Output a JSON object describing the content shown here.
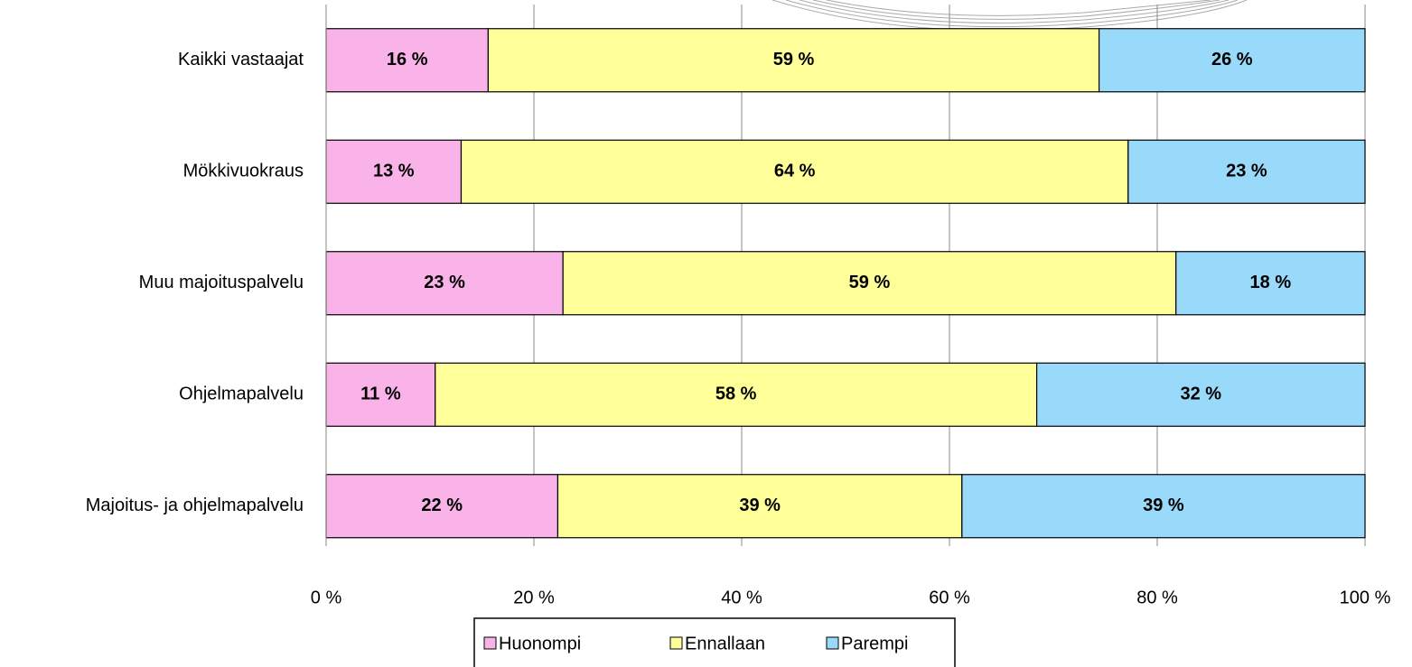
{
  "chart_data": {
    "type": "stacked-barh",
    "categories": [
      "Kaikki vastaajat",
      "Mökkivuokraus",
      "Muu majoituspalvelu",
      "Ohjelmapalvelu",
      "Majoitus- ja ohjelmapalvelu"
    ],
    "series": [
      {
        "name": "Huonompi",
        "color": "#f9b3e8",
        "values": [
          15.6,
          13.0,
          22.8,
          10.5,
          22.3
        ],
        "value_labels": [
          "16 %",
          "13 %",
          "23 %",
          "11 %",
          "22 %"
        ]
      },
      {
        "name": "Ennallaan",
        "color": "#ffff99",
        "values": [
          58.8,
          64.2,
          59.0,
          57.9,
          38.9
        ],
        "value_labels": [
          "59 %",
          "64 %",
          "59 %",
          "58 %",
          "39 %"
        ]
      },
      {
        "name": "Parempi",
        "color": "#99d9f9",
        "values": [
          25.6,
          22.8,
          18.2,
          31.6,
          38.8
        ],
        "value_labels": [
          "26 %",
          "23 %",
          "18 %",
          "32 %",
          "39 %"
        ]
      }
    ],
    "xlim": [
      0,
      100
    ],
    "xticks": [
      {
        "value": 0,
        "label": "0 %"
      },
      {
        "value": 20,
        "label": "20 %"
      },
      {
        "value": 40,
        "label": "40 %"
      },
      {
        "value": 60,
        "label": "60 %"
      },
      {
        "value": 80,
        "label": "80 %"
      },
      {
        "value": 100,
        "label": "100 %"
      }
    ],
    "grid": true,
    "legend": "bottom"
  }
}
